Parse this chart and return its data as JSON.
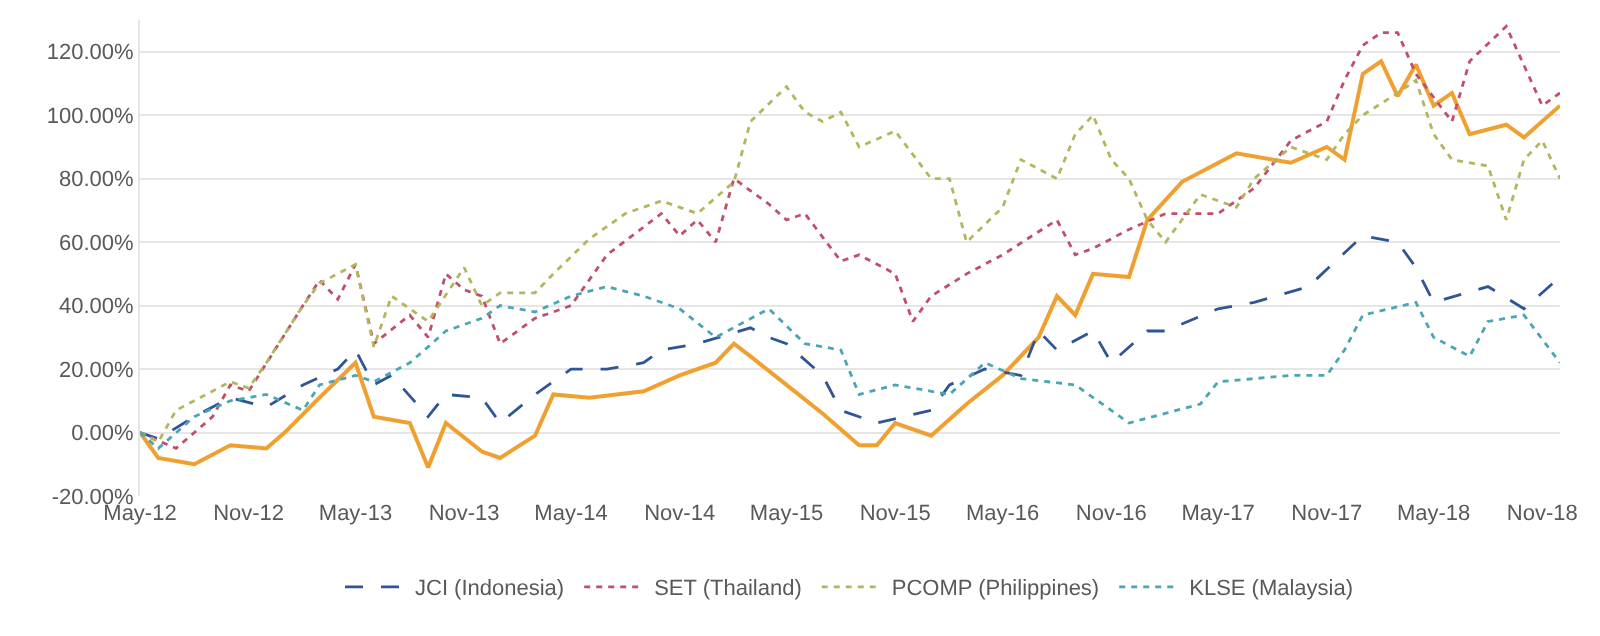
{
  "chart_data": {
    "type": "line",
    "xlim": [
      "2012-05",
      "2018-12"
    ],
    "xticks": [
      {
        "value": "2012-05",
        "label": "May-12"
      },
      {
        "value": "2012-11",
        "label": "Nov-12"
      },
      {
        "value": "2013-05",
        "label": "May-13"
      },
      {
        "value": "2013-11",
        "label": "Nov-13"
      },
      {
        "value": "2014-05",
        "label": "May-14"
      },
      {
        "value": "2014-11",
        "label": "Nov-14"
      },
      {
        "value": "2015-05",
        "label": "May-15"
      },
      {
        "value": "2015-11",
        "label": "Nov-15"
      },
      {
        "value": "2016-05",
        "label": "May-16"
      },
      {
        "value": "2016-11",
        "label": "Nov-16"
      },
      {
        "value": "2017-05",
        "label": "May-17"
      },
      {
        "value": "2017-11",
        "label": "Nov-17"
      },
      {
        "value": "2018-05",
        "label": "May-18"
      },
      {
        "value": "2018-11",
        "label": "Nov-18"
      }
    ],
    "ylim": [
      -20,
      130
    ],
    "yticks": [
      {
        "value": -20,
        "label": "-20.00%"
      },
      {
        "value": 0,
        "label": "0.00%"
      },
      {
        "value": 20,
        "label": "20.00%"
      },
      {
        "value": 40,
        "label": "40.00%"
      },
      {
        "value": 60,
        "label": "60.00%"
      },
      {
        "value": 80,
        "label": "80.00%"
      },
      {
        "value": 100,
        "label": "100.00%"
      },
      {
        "value": 120,
        "label": "120.00%"
      }
    ],
    "grid": "y",
    "legend": "bottom",
    "marker": "none",
    "series": [
      {
        "color": "#f0a030",
        "line_style": "solid",
        "x": [
          "2012-05",
          "2012-06",
          "2012-08",
          "2012-10",
          "2012-12",
          "2013-01",
          "2013-03",
          "2013-05",
          "2013-06",
          "2013-08",
          "2013-09",
          "2013-10",
          "2013-12",
          "2014-01",
          "2014-03",
          "2014-04",
          "2014-06",
          "2014-09",
          "2014-11",
          "2015-01",
          "2015-02",
          "2015-03",
          "2015-05",
          "2015-07",
          "2015-09",
          "2015-10",
          "2015-11",
          "2016-01",
          "2016-03",
          "2016-05",
          "2016-07",
          "2016-08",
          "2016-09",
          "2016-10",
          "2016-12",
          "2017-01",
          "2017-03",
          "2017-06",
          "2017-09",
          "2017-11",
          "2017-12",
          "2018-01",
          "2018-02",
          "2018-03",
          "2018-04",
          "2018-05",
          "2018-06",
          "2018-07",
          "2018-09",
          "2018-10",
          "2018-12"
        ],
        "values": [
          0,
          -8,
          -10,
          -4,
          -5,
          0,
          11,
          22,
          5,
          3,
          -11,
          3,
          -6,
          -8,
          -1,
          12,
          11,
          13,
          18,
          22,
          28,
          24,
          15,
          6,
          -4,
          -4,
          3,
          -1,
          9,
          18,
          30,
          43,
          37,
          50,
          49,
          67,
          79,
          88,
          85,
          90,
          86,
          113,
          117,
          106,
          116,
          103,
          107,
          94,
          97,
          93,
          103
        ]
      },
      {
        "name": "JCI (Indonesia)",
        "color": "#2f5597",
        "line_style": "dashed",
        "x": [
          "2012-05",
          "2012-06",
          "2012-08",
          "2012-10",
          "2012-12",
          "2013-02",
          "2013-04",
          "2013-05",
          "2013-06",
          "2013-07",
          "2013-09",
          "2013-10",
          "2013-12",
          "2014-01",
          "2014-03",
          "2014-05",
          "2014-07",
          "2014-09",
          "2014-10",
          "2014-12",
          "2015-03",
          "2015-04",
          "2015-05",
          "2015-07",
          "2015-08",
          "2015-10",
          "2016-01",
          "2016-02",
          "2016-04",
          "2016-06",
          "2016-07",
          "2016-08",
          "2016-10",
          "2016-11",
          "2017-01",
          "2017-02",
          "2017-05",
          "2017-07",
          "2017-10",
          "2018-01",
          "2018-03",
          "2018-04",
          "2018-05",
          "2018-08",
          "2018-10",
          "2018-12"
        ],
        "values": [
          0,
          -2,
          5,
          11,
          8,
          15,
          20,
          26,
          15,
          18,
          5,
          12,
          11,
          3,
          12,
          20,
          20,
          22,
          26,
          28,
          33,
          30,
          28,
          18,
          7,
          3,
          7,
          15,
          20,
          18,
          32,
          26,
          32,
          22,
          32,
          32,
          39,
          41,
          46,
          62,
          60,
          52,
          41,
          46,
          39,
          49
        ]
      },
      {
        "name": "SET (Thailand)",
        "color": "#c0506a",
        "line_style": "dotted",
        "x": [
          "2012-05",
          "2012-07",
          "2012-09",
          "2012-10",
          "2012-11",
          "2013-02",
          "2013-03",
          "2013-04",
          "2013-05",
          "2013-06",
          "2013-08",
          "2013-09",
          "2013-10",
          "2013-11",
          "2013-12",
          "2014-01",
          "2014-03",
          "2014-04",
          "2014-05",
          "2014-07",
          "2014-10",
          "2014-11",
          "2014-12",
          "2015-01",
          "2015-02",
          "2015-04",
          "2015-05",
          "2015-06",
          "2015-08",
          "2015-09",
          "2015-11",
          "2015-12",
          "2016-01",
          "2016-03",
          "2016-05",
          "2016-08",
          "2016-09",
          "2016-10",
          "2016-12",
          "2017-02",
          "2017-05",
          "2017-07",
          "2017-09",
          "2017-11",
          "2017-12",
          "2018-01",
          "2018-02",
          "2018-03",
          "2018-04",
          "2018-06",
          "2018-07",
          "2018-09",
          "2018-11",
          "2018-12"
        ],
        "values": [
          0,
          -5,
          5,
          15,
          13,
          40,
          48,
          42,
          53,
          28,
          37,
          30,
          50,
          45,
          43,
          28,
          36,
          38,
          40,
          56,
          69,
          62,
          67,
          60,
          80,
          72,
          67,
          69,
          54,
          56,
          50,
          35,
          43,
          50,
          56,
          67,
          56,
          58,
          64,
          69,
          69,
          77,
          92,
          98,
          111,
          122,
          126,
          126,
          113,
          98,
          117,
          128,
          103,
          107
        ]
      },
      {
        "name": "PCOMP (Philippines)",
        "color": "#b5b560",
        "line_style": "dotted",
        "x": [
          "2012-05",
          "2012-06",
          "2012-07",
          "2012-10",
          "2012-11",
          "2012-12",
          "2013-02",
          "2013-03",
          "2013-05",
          "2013-06",
          "2013-07",
          "2013-09",
          "2013-11",
          "2013-12",
          "2014-01",
          "2014-03",
          "2014-04",
          "2014-06",
          "2014-08",
          "2014-10",
          "2014-12",
          "2015-02",
          "2015-03",
          "2015-05",
          "2015-06",
          "2015-07",
          "2015-08",
          "2015-09",
          "2015-11",
          "2016-01",
          "2016-02",
          "2016-03",
          "2016-05",
          "2016-06",
          "2016-08",
          "2016-09",
          "2016-10",
          "2016-11",
          "2016-12",
          "2017-01",
          "2017-02",
          "2017-04",
          "2017-06",
          "2017-07",
          "2017-09",
          "2017-11",
          "2017-12",
          "2018-01",
          "2018-03",
          "2018-04",
          "2018-05",
          "2018-06",
          "2018-08",
          "2018-09",
          "2018-10",
          "2018-11",
          "2018-12"
        ],
        "values": [
          0,
          -3,
          7,
          16,
          14,
          22,
          40,
          47,
          53,
          27,
          43,
          35,
          52,
          40,
          44,
          44,
          50,
          61,
          69,
          73,
          69,
          79,
          98,
          109,
          101,
          98,
          101,
          90,
          95,
          80,
          80,
          60,
          71,
          86,
          80,
          94,
          100,
          86,
          80,
          67,
          60,
          75,
          71,
          80,
          90,
          86,
          94,
          100,
          107,
          111,
          94,
          86,
          84,
          67,
          86,
          92,
          80
        ]
      },
      {
        "name": "KLSE (Malaysia)",
        "color": "#4aa5b5",
        "line_style": "dotted",
        "x": [
          "2012-05",
          "2012-06",
          "2012-08",
          "2012-10",
          "2012-12",
          "2013-02",
          "2013-03",
          "2013-05",
          "2013-06",
          "2013-08",
          "2013-09",
          "2013-10",
          "2013-12",
          "2014-01",
          "2014-03",
          "2014-05",
          "2014-07",
          "2014-09",
          "2014-11",
          "2015-01",
          "2015-04",
          "2015-06",
          "2015-08",
          "2015-09",
          "2015-11",
          "2016-02",
          "2016-04",
          "2016-06",
          "2016-09",
          "2016-11",
          "2016-12",
          "2017-04",
          "2017-05",
          "2017-09",
          "2017-11",
          "2017-12",
          "2018-01",
          "2018-04",
          "2018-05",
          "2018-07",
          "2018-08",
          "2018-10",
          "2018-12"
        ],
        "values": [
          0,
          -5,
          5,
          10,
          12,
          7,
          15,
          18,
          16,
          22,
          27,
          32,
          36,
          40,
          38,
          43,
          46,
          43,
          39,
          30,
          39,
          28,
          26,
          12,
          15,
          12,
          22,
          17,
          15,
          7,
          3,
          9,
          16,
          18,
          18,
          26,
          37,
          41,
          30,
          24,
          35,
          37,
          22
        ]
      }
    ]
  }
}
